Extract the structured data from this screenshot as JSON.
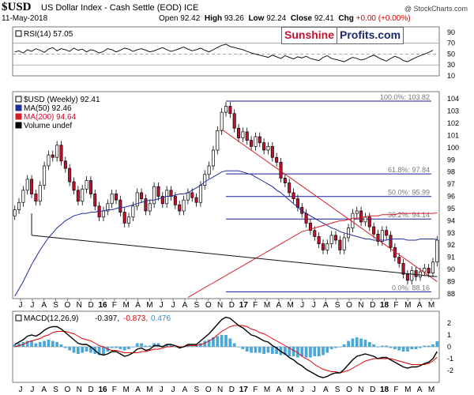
{
  "header": {
    "symbol": "$USD",
    "name": "US Dollar Index - Cash Settle (EOD) ICE",
    "date": "11-May-2018",
    "open_label": "Open",
    "open": "92.42",
    "high_label": "High",
    "high": "93.26",
    "low_label": "Low",
    "low": "92.24",
    "close_label": "Close",
    "close": "92.41",
    "chg_label": "Chg",
    "chg": "+0.00 (+0.00%)",
    "credit": "@ StockCharts.com"
  },
  "brand": {
    "part1": "Sunshine",
    "part2": "Profits.com"
  },
  "colors": {
    "bull": "#ffffff",
    "bear": "#c8102e",
    "ma50": "#1f2c9c",
    "ma200": "#d41f2a",
    "fib": "#1a1a9a",
    "trend_down": "#d41f2a",
    "trend_support": "#111111",
    "rsi": "#000000",
    "macd": "#000000",
    "signal": "#e00000",
    "hist": "#4aa8d8"
  },
  "chart_data": [
    {
      "type": "line",
      "name": "rsi",
      "legend": "RSI(14) 57.05",
      "ylim": [
        10,
        100
      ],
      "yticks": [
        90,
        70,
        50,
        30,
        10
      ],
      "ref_lines": [
        70,
        50,
        30
      ],
      "values": [
        54,
        56,
        52,
        58,
        55,
        60,
        57,
        53,
        59,
        62,
        56,
        60,
        58,
        55,
        61,
        57,
        59,
        54,
        58,
        56,
        52,
        55,
        60,
        58,
        54,
        57,
        61,
        59,
        55,
        58,
        60,
        57,
        54,
        56,
        59,
        62,
        58,
        55,
        57,
        60,
        63,
        59,
        56,
        58,
        61,
        57,
        54,
        58,
        62,
        66,
        68,
        64,
        62,
        60,
        58,
        55,
        52,
        50,
        48,
        46,
        44,
        48,
        45,
        42,
        47,
        44,
        41,
        45,
        43,
        46,
        42,
        40,
        38,
        44,
        47,
        42,
        40,
        38,
        36,
        40,
        44,
        42,
        39,
        41,
        45,
        48,
        44,
        40,
        37,
        42,
        46,
        43,
        38,
        36,
        40,
        44,
        47,
        50,
        53,
        57
      ]
    },
    {
      "type": "candlestick",
      "name": "price",
      "legend": [
        "$USD (Weekly) 92.41",
        "MA(50) 92.46",
        "MA(200) 94.64",
        "Volume undef"
      ],
      "ylim": [
        87.6,
        104.6
      ],
      "yticks": [
        104,
        103,
        102,
        101,
        100,
        99,
        98,
        97,
        96,
        95,
        94,
        93,
        92,
        91,
        90,
        89,
        88
      ],
      "x_labels": [
        "J",
        "J",
        "A",
        "S",
        "O",
        "N",
        "D",
        "16",
        "F",
        "M",
        "A",
        "M",
        "J",
        "J",
        "A",
        "S",
        "O",
        "N",
        "D",
        "17",
        "F",
        "M",
        "A",
        "M",
        "J",
        "J",
        "A",
        "S",
        "O",
        "N",
        "D",
        "18",
        "F",
        "M",
        "A",
        "M"
      ],
      "bold_labels": [
        "16",
        "17",
        "18"
      ],
      "close": [
        94.9,
        95.5,
        96.5,
        97.4,
        96.2,
        95.6,
        96.9,
        98.5,
        99.4,
        99.2,
        100.2,
        98.9,
        98.3,
        97.2,
        96.5,
        95.6,
        96.6,
        97.3,
        96.2,
        95.2,
        94.3,
        94.8,
        95.4,
        96.2,
        95.7,
        94.7,
        93.8,
        94.3,
        95.2,
        96.3,
        95.8,
        94.8,
        95.4,
        96.8,
        96.0,
        95.4,
        96.5,
        96.0,
        95.3,
        94.8,
        95.7,
        96.3,
        95.9,
        95.5,
        96.9,
        97.8,
        98.5,
        99.8,
        101.4,
        102.9,
        103.4,
        102.8,
        101.6,
        100.8,
        101.3,
        100.6,
        100.1,
        100.9,
        100.4,
        99.8,
        100.1,
        99.2,
        98.8,
        97.5,
        97.1,
        96.3,
        95.8,
        95.1,
        94.6,
        93.8,
        93.2,
        92.7,
        92.1,
        91.6,
        92.1,
        92.8,
        92.4,
        91.6,
        92.6,
        93.4,
        94.6,
        94.8,
        93.9,
        94.3,
        93.5,
        92.9,
        92.3,
        93.2,
        92.8,
        91.8,
        91.0,
        90.5,
        89.6,
        89.1,
        89.9,
        89.4,
        89.8,
        90.1,
        89.7,
        90.6,
        92.4
      ],
      "ma50": [
        87.8,
        88.4,
        89.0,
        89.7,
        90.4,
        91.0,
        91.6,
        92.1,
        92.6,
        93.0,
        93.4,
        93.7,
        94.0,
        94.2,
        94.4,
        94.5,
        94.6,
        94.6,
        94.7,
        94.7,
        94.8,
        94.8,
        94.9,
        94.9,
        95.0,
        95.1,
        95.1,
        95.2,
        95.3,
        95.4,
        95.5,
        95.6,
        95.7,
        95.7,
        95.8,
        95.9,
        96.0,
        96.0,
        96.1,
        96.2,
        96.2,
        96.3,
        96.5,
        96.7,
        96.9,
        97.2,
        97.4,
        97.6,
        97.8,
        98.0,
        98.1,
        98.1,
        98.1,
        98.1,
        98.0,
        97.9,
        97.8,
        97.6,
        97.4,
        97.2,
        97.0,
        96.8,
        96.5,
        96.3,
        96.0,
        95.7,
        95.4,
        95.1,
        94.8,
        94.6,
        94.4,
        94.2,
        94.0,
        93.8,
        93.6,
        93.4,
        93.3,
        93.1,
        93.0,
        92.9,
        92.8,
        92.7,
        92.6,
        92.5,
        92.5,
        92.4,
        92.4,
        92.4,
        92.4,
        92.5,
        92.5,
        92.5,
        92.5,
        92.4,
        92.4,
        92.4,
        92.5,
        92.5,
        92.5,
        92.5,
        92.46
      ],
      "ma200": [
        null,
        null,
        null,
        null,
        null,
        null,
        null,
        null,
        null,
        null,
        null,
        null,
        null,
        null,
        null,
        null,
        null,
        null,
        null,
        null,
        null,
        null,
        null,
        null,
        null,
        null,
        null,
        null,
        null,
        null,
        null,
        null,
        null,
        null,
        null,
        null,
        null,
        null,
        null,
        null,
        null,
        87.7,
        87.9,
        88.1,
        88.3,
        88.5,
        88.7,
        88.9,
        89.1,
        89.3,
        89.5,
        89.7,
        89.9,
        90.1,
        90.3,
        90.5,
        90.7,
        90.9,
        91.1,
        91.3,
        91.5,
        91.7,
        91.9,
        92.1,
        92.3,
        92.5,
        92.7,
        92.9,
        93.1,
        93.2,
        93.3,
        93.4,
        93.5,
        93.6,
        93.7,
        93.8,
        93.9,
        94.0,
        94.0,
        94.1,
        94.2,
        94.2,
        94.3,
        94.3,
        94.4,
        94.4,
        94.4,
        94.5,
        94.5,
        94.5,
        94.5,
        94.6,
        94.6,
        94.6,
        94.6,
        94.6,
        94.6,
        94.6,
        94.6,
        94.6,
        94.64
      ],
      "fib_levels": [
        {
          "label": "100.0%: 103.82",
          "value": 103.82
        },
        {
          "label": "61.8%: 97.84",
          "value": 97.84
        },
        {
          "label": "50.0%: 95.99",
          "value": 95.99
        },
        {
          "label": "38.2%: 94.14",
          "value": 94.14
        },
        {
          "label": "0.0%: 88.16",
          "value": 88.16
        }
      ],
      "trend_down": {
        "from": [
          49,
          101.5
        ],
        "to": [
          100,
          89.0
        ]
      },
      "trend_support": {
        "from": [
          4,
          92.8
        ],
        "to": [
          100,
          89.4
        ]
      }
    },
    {
      "type": "line",
      "name": "macd",
      "legend_name": "MACD(12,26,9)",
      "macd_value": "-0.397",
      "signal_value": "-0.873",
      "hist_value": "0.476",
      "ylim": [
        -3,
        3
      ],
      "yticks": [
        2,
        1,
        0,
        -1,
        -2
      ],
      "macd": [
        0.2,
        0.4,
        0.6,
        0.9,
        1.0,
        0.9,
        1.1,
        1.4,
        1.6,
        1.7,
        1.7,
        1.5,
        1.2,
        0.9,
        0.6,
        0.3,
        0.2,
        0.2,
        0.0,
        -0.3,
        -0.6,
        -0.7,
        -0.6,
        -0.4,
        -0.4,
        -0.6,
        -0.8,
        -0.7,
        -0.5,
        -0.2,
        -0.1,
        -0.3,
        -0.2,
        0.1,
        0.1,
        0.0,
        0.2,
        0.2,
        0.1,
        -0.1,
        0.0,
        0.2,
        0.2,
        0.2,
        0.5,
        0.8,
        1.1,
        1.5,
        1.9,
        2.3,
        2.5,
        2.4,
        2.1,
        1.8,
        1.6,
        1.3,
        1.0,
        0.9,
        0.7,
        0.5,
        0.4,
        0.1,
        -0.1,
        -0.4,
        -0.6,
        -0.9,
        -1.1,
        -1.4,
        -1.6,
        -1.9,
        -2.1,
        -2.3,
        -2.5,
        -2.6,
        -2.5,
        -2.3,
        -2.2,
        -2.2,
        -1.9,
        -1.5,
        -1.1,
        -0.8,
        -0.7,
        -0.6,
        -0.7,
        -0.8,
        -1.0,
        -0.9,
        -0.9,
        -1.1,
        -1.3,
        -1.5,
        -1.7,
        -1.8,
        -1.7,
        -1.7,
        -1.6,
        -1.4,
        -1.3,
        -1.0,
        -0.4
      ],
      "signal": [
        0.0,
        0.1,
        0.2,
        0.4,
        0.5,
        0.6,
        0.7,
        0.9,
        1.0,
        1.2,
        1.3,
        1.3,
        1.3,
        1.2,
        1.1,
        0.9,
        0.7,
        0.6,
        0.5,
        0.3,
        0.1,
        0.0,
        -0.2,
        -0.3,
        -0.3,
        -0.4,
        -0.5,
        -0.5,
        -0.5,
        -0.5,
        -0.4,
        -0.4,
        -0.3,
        -0.2,
        -0.2,
        -0.1,
        0.0,
        0.0,
        0.1,
        0.0,
        0.0,
        0.1,
        0.1,
        0.1,
        0.2,
        0.3,
        0.5,
        0.7,
        1.0,
        1.3,
        1.5,
        1.7,
        1.8,
        1.8,
        1.8,
        1.7,
        1.5,
        1.4,
        1.2,
        1.1,
        0.9,
        0.7,
        0.5,
        0.3,
        0.1,
        -0.1,
        -0.3,
        -0.5,
        -0.8,
        -1.0,
        -1.2,
        -1.5,
        -1.7,
        -1.9,
        -2.0,
        -2.1,
        -2.1,
        -2.2,
        -2.1,
        -2.0,
        -1.8,
        -1.6,
        -1.4,
        -1.2,
        -1.1,
        -1.0,
        -1.0,
        -1.0,
        -1.0,
        -1.0,
        -1.1,
        -1.2,
        -1.3,
        -1.4,
        -1.5,
        -1.5,
        -1.5,
        -1.5,
        -1.4,
        -1.2,
        -0.873
      ]
    }
  ]
}
